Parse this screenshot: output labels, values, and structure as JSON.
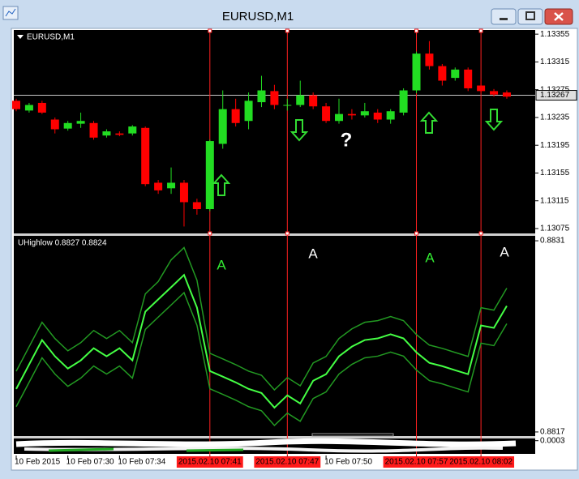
{
  "window": {
    "title": "EURUSD,M1"
  },
  "chart_data": [
    {
      "type": "candlestick",
      "title": "EURUSD,M1",
      "categories": [
        "10 Feb 2015",
        null,
        null,
        null,
        "10 Feb 07:30",
        null,
        null,
        null,
        "10 Feb 07:34",
        null,
        null,
        null,
        null,
        null,
        null,
        "2015.02.10 07:41",
        null,
        null,
        null,
        null,
        null,
        "2015.02.10 07:47",
        null,
        null,
        "10 Feb 07:50",
        null,
        null,
        null,
        null,
        null,
        null,
        "2015.02.10 07:57",
        null,
        null,
        null,
        null,
        "2015.02.10 08:02",
        null,
        null
      ],
      "open": [
        1.13259,
        1.13245,
        1.13256,
        1.13232,
        1.13219,
        1.13226,
        1.13227,
        1.13209,
        1.13212,
        1.13212,
        1.1322,
        1.13141,
        1.13133,
        1.13141,
        1.13113,
        1.13103,
        1.13197,
        1.13247,
        1.1323,
        1.13257,
        1.13273,
        1.13253,
        1.13253,
        1.13267,
        1.13251,
        1.1323,
        1.1324,
        1.13238,
        1.13242,
        1.13232,
        1.13242,
        1.13274,
        1.13327,
        1.13309,
        1.13292,
        1.13304,
        1.13281,
        1.13273,
        1.13271
      ],
      "high": [
        1.13262,
        1.13256,
        1.13259,
        1.13235,
        1.1323,
        1.13242,
        1.1323,
        1.13218,
        1.13215,
        1.13224,
        1.13222,
        1.13145,
        1.13163,
        1.13145,
        1.13118,
        1.13203,
        1.13274,
        1.13262,
        1.13271,
        1.13295,
        1.13282,
        1.13262,
        1.13288,
        1.13271,
        1.13256,
        1.13262,
        1.13247,
        1.13256,
        1.13247,
        1.13247,
        1.13277,
        1.1333,
        1.13345,
        1.13312,
        1.13307,
        1.13307,
        1.1329,
        1.13276,
        1.13274
      ],
      "low": [
        1.13244,
        1.13242,
        1.1324,
        1.13212,
        1.13216,
        1.1322,
        1.13203,
        1.13206,
        1.13208,
        1.13209,
        1.13136,
        1.13125,
        1.13125,
        1.13078,
        1.13095,
        1.131,
        1.1319,
        1.13222,
        1.13218,
        1.1325,
        1.13247,
        1.13245,
        1.1325,
        1.13247,
        1.13227,
        1.13226,
        1.13232,
        1.13235,
        1.13227,
        1.13226,
        1.13238,
        1.1327,
        1.13304,
        1.13281,
        1.13288,
        1.13273,
        1.1327,
        1.13265,
        1.13262
      ],
      "close": [
        1.13247,
        1.13253,
        1.13242,
        1.13218,
        1.13227,
        1.1323,
        1.13206,
        1.13215,
        1.1321,
        1.13222,
        1.13139,
        1.1313,
        1.13141,
        1.13113,
        1.13103,
        1.13201,
        1.13247,
        1.13227,
        1.13259,
        1.13274,
        1.13253,
        1.13253,
        1.13267,
        1.13251,
        1.1323,
        1.1324,
        1.13238,
        1.13244,
        1.13232,
        1.13244,
        1.13274,
        1.13327,
        1.13309,
        1.13288,
        1.13304,
        1.13277,
        1.13273,
        1.13268,
        1.13265
      ],
      "up_color": "#22dd22",
      "down_color": "#ff0000",
      "ylim": [
        1.13068,
        1.13361
      ],
      "yticks": [
        1.13355,
        1.13315,
        1.13275,
        1.13235,
        1.13195,
        1.13155,
        1.13115,
        1.13075
      ],
      "current_price": 1.13267,
      "vertical_lines": [
        15,
        21,
        31,
        36
      ],
      "annotations": [
        {
          "text": "?",
          "color": "#ffffff"
        }
      ]
    },
    {
      "type": "line",
      "title": "UHighlow 0.8827 0.8824",
      "series": [
        {
          "color": "#229922",
          "values": [
            0.882145,
            0.882324,
            0.882503,
            0.882384,
            0.882294,
            0.882354,
            0.882443,
            0.882384,
            0.882443,
            0.882354,
            0.882711,
            0.882801,
            0.88296,
            0.88305,
            0.882811,
            0.882276,
            0.882235,
            0.882193,
            0.882145,
            0.882115,
            0.882008,
            0.882098,
            0.882038,
            0.882205,
            0.882253,
            0.882384,
            0.882455,
            0.882503,
            0.882515,
            0.882545,
            0.882515,
            0.882413,
            0.882336,
            0.882312,
            0.882282,
            0.882253,
            0.88261,
            0.882592,
            0.882753
          ]
        },
        {
          "color": "#44ff44",
          "values": [
            0.882015,
            0.882194,
            0.882373,
            0.882254,
            0.882164,
            0.882224,
            0.882313,
            0.882254,
            0.882313,
            0.882224,
            0.882581,
            0.882671,
            0.88276,
            0.88285,
            0.882611,
            0.882146,
            0.882105,
            0.882063,
            0.882015,
            0.881985,
            0.881878,
            0.881968,
            0.881908,
            0.882075,
            0.882123,
            0.882254,
            0.882325,
            0.882373,
            0.882385,
            0.882415,
            0.882385,
            0.882283,
            0.882206,
            0.882182,
            0.882152,
            0.882123,
            0.88248,
            0.882462,
            0.882623
          ]
        },
        {
          "color": "#229922",
          "values": [
            0.881885,
            0.882064,
            0.882243,
            0.882124,
            0.882034,
            0.882094,
            0.882183,
            0.882124,
            0.882183,
            0.882094,
            0.882451,
            0.882541,
            0.88263,
            0.88272,
            0.882481,
            0.882016,
            0.881975,
            0.881933,
            0.881885,
            0.881855,
            0.881748,
            0.881838,
            0.881778,
            0.881945,
            0.881993,
            0.882124,
            0.882195,
            0.882243,
            0.882255,
            0.882285,
            0.882255,
            0.882153,
            0.882076,
            0.882052,
            0.882022,
            0.881993,
            0.88235,
            0.882332,
            0.882493
          ]
        }
      ],
      "ylim": [
        0.88167,
        0.883136
      ],
      "yticks": [
        0.8831,
        0.8817
      ],
      "annotations": [
        {
          "text": "A",
          "color": "#33ee33"
        },
        {
          "text": "A",
          "color": "#ffffff"
        },
        {
          "text": "A",
          "color": "#33ee33"
        },
        {
          "text": "A",
          "color": "#ffffff"
        }
      ]
    },
    {
      "type": "bar",
      "ylim": [
        0,
        0.00035
      ],
      "yticks": [
        0.0003
      ]
    }
  ]
}
